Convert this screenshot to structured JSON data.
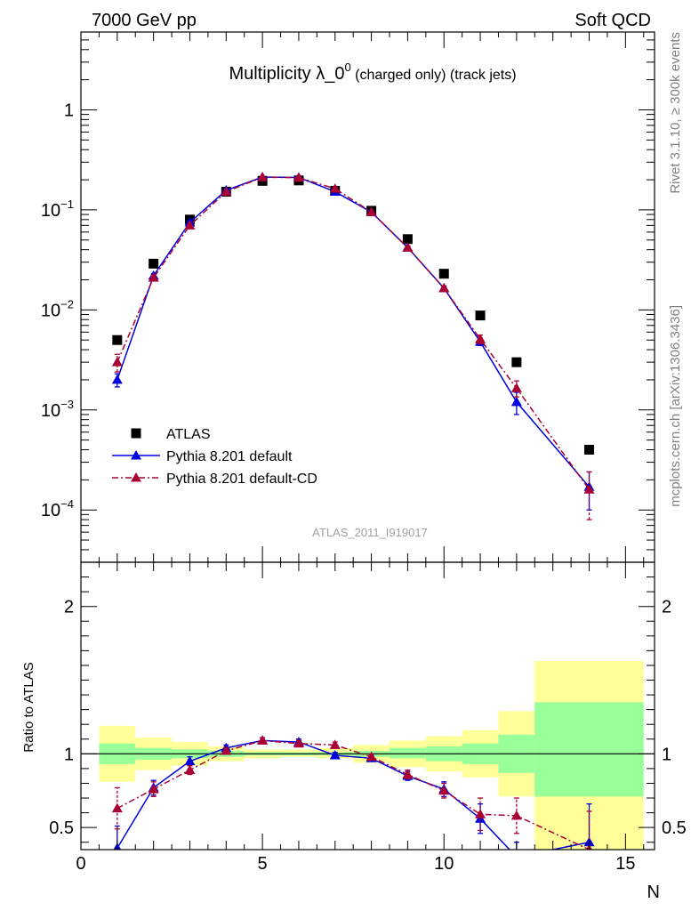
{
  "header": {
    "left": "7000 GeV pp",
    "right": "Soft QCD"
  },
  "chart_data": [
    {
      "type": "scatter",
      "panel": "main",
      "title_main": "Multiplicity λ_0",
      "title_sup": "0",
      "title_tail": " (charged only) (track jets)",
      "xlabel": "N",
      "ylabel": "",
      "yscale": "log",
      "xlim": [
        0,
        15.8
      ],
      "ylim": [
        3e-05,
        6
      ],
      "y_tick_labels": [
        {
          "value": 1,
          "base": "1",
          "exp": ""
        },
        {
          "value": 0.1,
          "base": "10",
          "exp": "−1"
        },
        {
          "value": 0.01,
          "base": "10",
          "exp": "−2"
        },
        {
          "value": 0.001,
          "base": "10",
          "exp": "−3"
        },
        {
          "value": 0.0001,
          "base": "10",
          "exp": "−4"
        }
      ],
      "watermark": "ATLAS_2011_I919017",
      "legend_position": "bottom-left",
      "series": [
        {
          "name": "ATLAS",
          "color": "#000000",
          "marker": "square",
          "x": [
            1,
            2,
            3,
            4,
            5,
            6,
            7,
            8,
            9,
            10,
            11,
            12,
            14
          ],
          "y": [
            0.005,
            0.029,
            0.08,
            0.152,
            0.195,
            0.197,
            0.155,
            0.098,
            0.051,
            0.023,
            0.0088,
            0.003,
            0.0004
          ]
        },
        {
          "name": "Pythia 8.201 default",
          "color": "#0000dd",
          "marker": "triangle",
          "line": "solid",
          "x": [
            1,
            2,
            3,
            4,
            5,
            6,
            7,
            8,
            9,
            10,
            11,
            12,
            14
          ],
          "y": [
            0.002,
            0.022,
            0.075,
            0.157,
            0.213,
            0.211,
            0.152,
            0.095,
            0.042,
            0.0165,
            0.0048,
            0.0012,
            0.00017
          ],
          "yerr": [
            0.0003,
            0.001,
            0.002,
            0.003,
            0.004,
            0.004,
            0.003,
            0.002,
            0.0015,
            0.0008,
            0.0004,
            0.0003,
            7e-05
          ]
        },
        {
          "name": "Pythia 8.201 default-CD",
          "color": "#aa0033",
          "marker": "triangle",
          "line": "dashdot",
          "x": [
            1,
            2,
            3,
            4,
            5,
            6,
            7,
            8,
            9,
            10,
            11,
            12,
            14
          ],
          "y": [
            0.003,
            0.021,
            0.07,
            0.152,
            0.212,
            0.21,
            0.163,
            0.095,
            0.042,
            0.0165,
            0.0051,
            0.00165,
            0.00016
          ],
          "yerr": [
            0.0006,
            0.001,
            0.002,
            0.003,
            0.004,
            0.004,
            0.003,
            0.002,
            0.0015,
            0.0008,
            0.0005,
            0.0003,
            8e-05
          ]
        }
      ]
    },
    {
      "type": "scatter",
      "panel": "ratio",
      "xlabel": "N",
      "ylabel": "Ratio to ATLAS",
      "xlim": [
        0,
        15.8
      ],
      "ylim": [
        0.35,
        2.3
      ],
      "x_ticks": [
        0,
        5,
        10,
        15
      ],
      "y_ticks": [
        0.5,
        1,
        2
      ],
      "y_tick_labels": [
        "0.5",
        "1",
        "2"
      ],
      "bands": [
        {
          "x0": 0.5,
          "x1": 1.5,
          "stat_lo": 0.93,
          "stat_hi": 1.07,
          "tot_lo": 0.81,
          "tot_hi": 1.19
        },
        {
          "x0": 1.5,
          "x1": 2.5,
          "stat_lo": 0.96,
          "stat_hi": 1.04,
          "tot_lo": 0.89,
          "tot_hi": 1.11
        },
        {
          "x0": 2.5,
          "x1": 3.5,
          "stat_lo": 0.97,
          "stat_hi": 1.03,
          "tot_lo": 0.92,
          "tot_hi": 1.08
        },
        {
          "x0": 3.5,
          "x1": 4.5,
          "stat_lo": 0.98,
          "stat_hi": 1.02,
          "tot_lo": 0.95,
          "tot_hi": 1.05
        },
        {
          "x0": 4.5,
          "x1": 5.5,
          "stat_lo": 0.99,
          "stat_hi": 1.01,
          "tot_lo": 0.97,
          "tot_hi": 1.03
        },
        {
          "x0": 5.5,
          "x1": 6.5,
          "stat_lo": 0.99,
          "stat_hi": 1.01,
          "tot_lo": 0.98,
          "tot_hi": 1.03
        },
        {
          "x0": 6.5,
          "x1": 7.5,
          "stat_lo": 0.99,
          "stat_hi": 1.01,
          "tot_lo": 0.97,
          "tot_hi": 1.04
        },
        {
          "x0": 7.5,
          "x1": 8.5,
          "stat_lo": 0.98,
          "stat_hi": 1.02,
          "tot_lo": 0.94,
          "tot_hi": 1.06
        },
        {
          "x0": 8.5,
          "x1": 9.5,
          "stat_lo": 0.97,
          "stat_hi": 1.04,
          "tot_lo": 0.91,
          "tot_hi": 1.09
        },
        {
          "x0": 9.5,
          "x1": 10.5,
          "stat_lo": 0.95,
          "stat_hi": 1.05,
          "tot_lo": 0.88,
          "tot_hi": 1.12
        },
        {
          "x0": 10.5,
          "x1": 11.5,
          "stat_lo": 0.93,
          "stat_hi": 1.07,
          "tot_lo": 0.84,
          "tot_hi": 1.16
        },
        {
          "x0": 11.5,
          "x1": 12.5,
          "stat_lo": 0.87,
          "stat_hi": 1.13,
          "tot_lo": 0.71,
          "tot_hi": 1.29
        },
        {
          "x0": 12.5,
          "x1": 15.5,
          "stat_lo": 0.71,
          "stat_hi": 1.35,
          "tot_lo": 0.3,
          "tot_hi": 1.63
        }
      ],
      "band_colors": {
        "stat": "#99ff99",
        "total": "#ffff99"
      },
      "series": [
        {
          "name": "Pythia 8.201 default",
          "color": "#0000dd",
          "line": "solid",
          "x": [
            1,
            2,
            3,
            4,
            5,
            6,
            7,
            8,
            9,
            10,
            11,
            12,
            14
          ],
          "y": [
            0.36,
            0.77,
            0.95,
            1.04,
            1.09,
            1.08,
            0.99,
            0.97,
            0.85,
            0.76,
            0.56,
            0.3,
            0.4
          ],
          "yerr": [
            0.15,
            0.05,
            0.03,
            0.02,
            0.02,
            0.02,
            0.02,
            0.02,
            0.03,
            0.05,
            0.1,
            0.1,
            0.26
          ]
        },
        {
          "name": "Pythia 8.201 default-CD",
          "color": "#aa0033",
          "line": "dashdot",
          "x": [
            1,
            2,
            3,
            4,
            5,
            6,
            7,
            8,
            9,
            10,
            11,
            12,
            14
          ],
          "y": [
            0.63,
            0.76,
            0.89,
            1.02,
            1.09,
            1.07,
            1.06,
            0.98,
            0.86,
            0.75,
            0.59,
            0.58,
            0.35
          ],
          "yerr": [
            0.14,
            0.05,
            0.03,
            0.02,
            0.02,
            0.02,
            0.02,
            0.02,
            0.03,
            0.05,
            0.11,
            0.12,
            0.26
          ]
        }
      ]
    }
  ],
  "side_labels": {
    "top": "Rivet 3.1.10, ≥ 300k events",
    "bottom": "mcplots.cern.ch [arXiv:1306.3436]"
  }
}
